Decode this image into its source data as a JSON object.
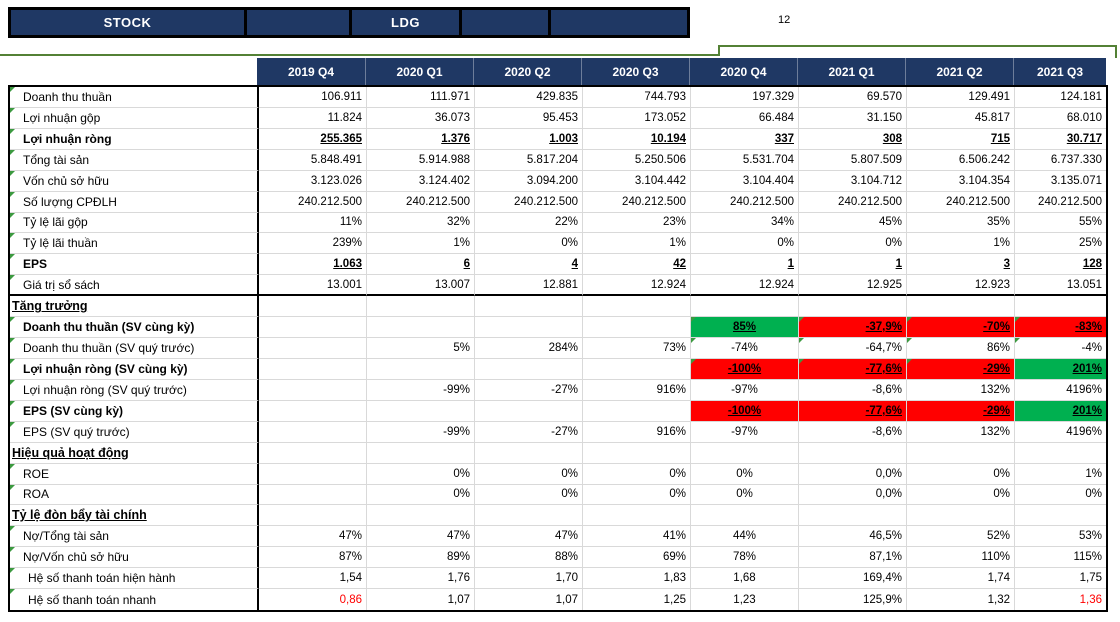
{
  "window": {
    "stock_label": "STOCK",
    "stock_code": "LDG",
    "page_number": "12"
  },
  "colors": {
    "navy": "#1F3864",
    "green": "#00B050",
    "red": "#FF0000",
    "accent_line": "#538135",
    "error_triangle": "#3C9A40",
    "negative_text": "#FF0000"
  },
  "table": {
    "columns": [
      "2019 Q4",
      "2020 Q1",
      "2020 Q2",
      "2020 Q3",
      "2020 Q4",
      "2021 Q1",
      "2021 Q2",
      "2021 Q3"
    ],
    "rows": [
      {
        "label": "Doanh thu thuần",
        "type": "data",
        "cells": [
          "106.911",
          "111.971",
          "429.835",
          "744.793",
          "197.329",
          "69.570",
          "129.491",
          "124.181"
        ]
      },
      {
        "label": "Lợi nhuận gộp",
        "type": "data",
        "cells": [
          "11.824",
          "36.073",
          "95.453",
          "173.052",
          "66.484",
          "31.150",
          "45.817",
          "68.010"
        ]
      },
      {
        "label": "Lợi nhuận ròng",
        "type": "bold",
        "u": true,
        "cells": [
          "255.365",
          "1.376",
          "1.003",
          "10.194",
          "337",
          "308",
          "715",
          "30.717"
        ]
      },
      {
        "label": "Tổng tài sản",
        "type": "data",
        "cells": [
          "5.848.491",
          "5.914.988",
          "5.817.204",
          "5.250.506",
          "5.531.704",
          "5.807.509",
          "6.506.242",
          "6.737.330"
        ]
      },
      {
        "label": "Vốn chủ sở hữu",
        "type": "data",
        "cells": [
          "3.123.026",
          "3.124.402",
          "3.094.200",
          "3.104.442",
          "3.104.404",
          "3.104.712",
          "3.104.354",
          "3.135.071"
        ]
      },
      {
        "label": "Số lượng CPĐLH",
        "type": "data",
        "cells": [
          "240.212.500",
          "240.212.500",
          "240.212.500",
          "240.212.500",
          "240.212.500",
          "240.212.500",
          "240.212.500",
          "240.212.500"
        ]
      },
      {
        "label": "Tỷ lệ lãi gộp",
        "type": "data",
        "cells": [
          "11%",
          "32%",
          "22%",
          "23%",
          "34%",
          "45%",
          "35%",
          "55%"
        ]
      },
      {
        "label": "Tỷ lệ lãi thuần",
        "type": "data",
        "cells": [
          "239%",
          "1%",
          "0%",
          "1%",
          "0%",
          "0%",
          "1%",
          "25%"
        ]
      },
      {
        "label": "EPS",
        "type": "bold",
        "u": true,
        "cells": [
          "1.063",
          "6",
          "4",
          "42",
          "1",
          "1",
          "3",
          "128"
        ]
      },
      {
        "label": "Giá trị sổ sách",
        "type": "data",
        "thick_bottom": true,
        "cells": [
          "13.001",
          "13.007",
          "12.881",
          "12.924",
          "12.924",
          "12.925",
          "12.923",
          "13.051"
        ]
      },
      {
        "label": "Tăng trưởng",
        "type": "section",
        "cells": [
          "",
          "",
          "",
          "",
          "",
          "",
          "",
          ""
        ]
      },
      {
        "label": "Doanh thu thuần (SV cùng kỳ)",
        "type": "bold",
        "cells": [
          "",
          "",
          "",
          "",
          {
            "v": "85%",
            "bg": "green",
            "u": 1,
            "tri": 1
          },
          {
            "v": "-37,9%",
            "bg": "red",
            "u": 1,
            "tri": 1
          },
          {
            "v": "-70%",
            "bg": "red",
            "u": 1,
            "tri": 1
          },
          {
            "v": "-83%",
            "bg": "red",
            "u": 1,
            "tri": 1
          }
        ]
      },
      {
        "label": "Doanh thu thuần (SV quý trước)",
        "type": "data",
        "cells": [
          "",
          "5%",
          "284%",
          "73%",
          {
            "v": "-74%",
            "tri": 1
          },
          {
            "v": "-64,7%",
            "tri": 1
          },
          {
            "v": "86%",
            "tri": 1
          },
          {
            "v": "-4%",
            "tri": 1
          }
        ]
      },
      {
        "label": "Lợi nhuận ròng (SV cùng kỳ)",
        "type": "bold",
        "cells": [
          "",
          "",
          "",
          "",
          {
            "v": "-100%",
            "bg": "red",
            "u": 1,
            "tri": 1
          },
          {
            "v": "-77,6%",
            "bg": "red",
            "u": 1,
            "tri": 1
          },
          {
            "v": "-29%",
            "bg": "red",
            "u": 1,
            "tri": 1
          },
          {
            "v": "201%",
            "bg": "green",
            "u": 1
          }
        ]
      },
      {
        "label": "Lợi nhuận ròng (SV quý trước)",
        "type": "data",
        "cells": [
          "",
          "-99%",
          "-27%",
          "916%",
          "-97%",
          "-8,6%",
          "132%",
          "4196%"
        ]
      },
      {
        "label": "EPS (SV cùng kỳ)",
        "type": "bold",
        "cells": [
          "",
          "",
          "",
          "",
          {
            "v": "-100%",
            "bg": "red",
            "u": 1
          },
          {
            "v": "-77,6%",
            "bg": "red",
            "u": 1
          },
          {
            "v": "-29%",
            "bg": "red",
            "u": 1
          },
          {
            "v": "201%",
            "bg": "green",
            "u": 1
          }
        ]
      },
      {
        "label": "EPS (SV quý trước)",
        "type": "data",
        "cells": [
          "",
          "-99%",
          "-27%",
          "916%",
          "-97%",
          "-8,6%",
          "132%",
          "4196%"
        ]
      },
      {
        "label": "Hiệu quả hoạt động",
        "type": "section",
        "cells": [
          "",
          "",
          "",
          "",
          "",
          "",
          "",
          ""
        ]
      },
      {
        "label": "ROE",
        "type": "data",
        "cells": [
          "",
          "0%",
          "0%",
          "0%",
          "0%",
          "0,0%",
          "0%",
          "1%"
        ]
      },
      {
        "label": "ROA",
        "type": "data",
        "cells": [
          "",
          "0%",
          "0%",
          "0%",
          "0%",
          "0,0%",
          "0%",
          "0%"
        ]
      },
      {
        "label": "Tỷ lệ đòn bẩy tài chính",
        "type": "section",
        "cells": [
          "",
          "",
          "",
          "",
          "",
          "",
          "",
          ""
        ]
      },
      {
        "label": "Nợ/Tổng tài sản",
        "type": "data",
        "cells": [
          "47%",
          "47%",
          "47%",
          "41%",
          "44%",
          "46,5%",
          "52%",
          "53%"
        ]
      },
      {
        "label": "Nợ/Vốn chủ sở hữu",
        "type": "data",
        "cells": [
          "87%",
          "89%",
          "88%",
          "69%",
          "78%",
          "87,1%",
          "110%",
          "115%"
        ]
      },
      {
        "label": "Hệ số thanh toán hiện hành",
        "type": "data",
        "indent": 2,
        "cells": [
          "1,54",
          "1,76",
          "1,70",
          "1,83",
          "1,68",
          "169,4%",
          "1,74",
          "1,75"
        ]
      },
      {
        "label": "Hệ số thanh toán nhanh",
        "type": "data",
        "indent": 2,
        "cells": [
          {
            "v": "0,86",
            "color": "red"
          },
          "1,07",
          "1,07",
          "1,25",
          "1,23",
          "125,9%",
          "1,32",
          {
            "v": "1,36",
            "color": "red"
          }
        ]
      }
    ]
  }
}
